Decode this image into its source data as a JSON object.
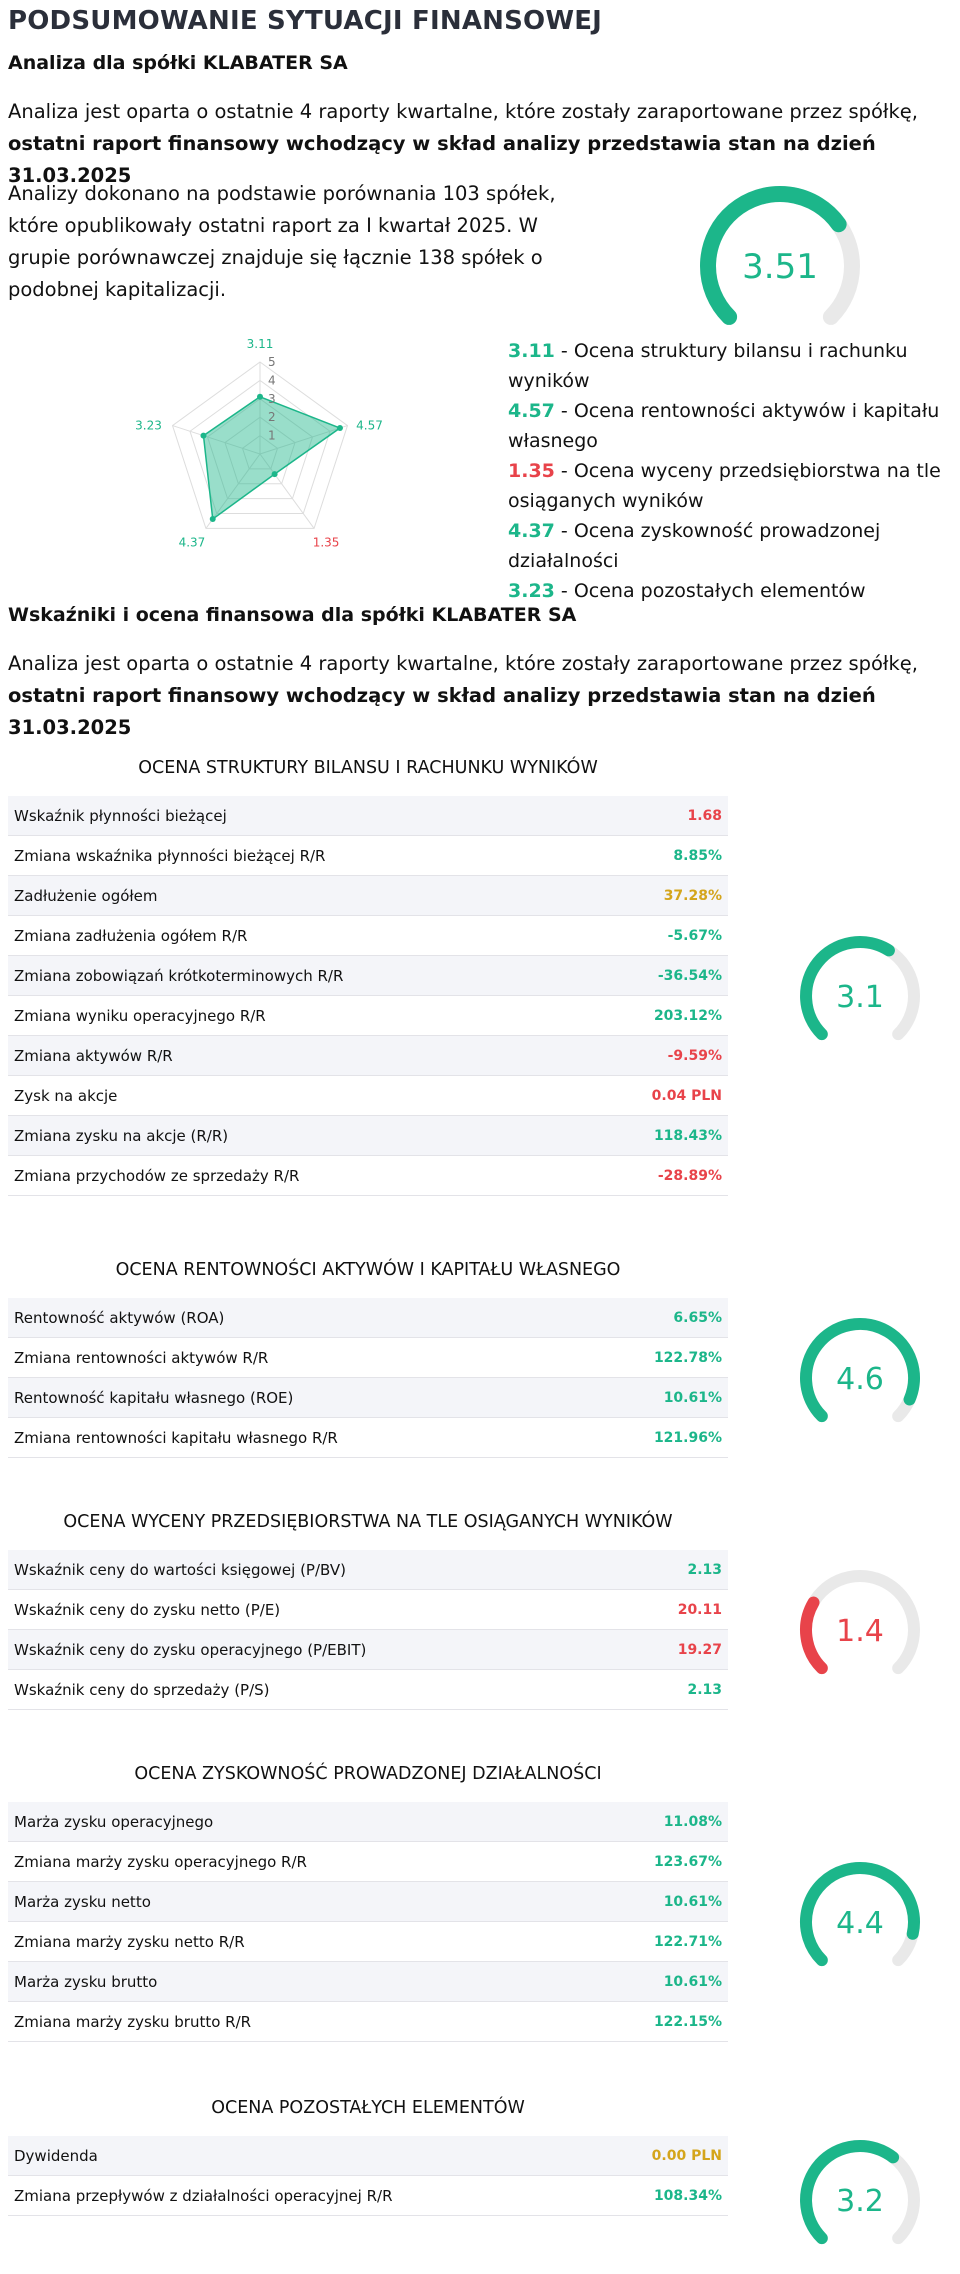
{
  "header": {
    "title": "PODSUMOWANIE SYTUACJI FINANSOWEJ",
    "subtitle": "Analiza dla spółki KLABATER SA"
  },
  "intro": {
    "text": "Analiza jest oparta o ostatnie 4 raporty kwartalne, które zostały zaraportowane przez spółkę, ",
    "bold": "ostatni raport finansowy wchodzący w skład analizy przedstawia stan na dzień 31.03.2025"
  },
  "comparison_note": "Analizy dokonano na podstawie porównania 103 spółek, które opublikowały ostatni raport za I kwartał 2025. W grupie porównawczej znajduje się łącznie 138 spółek o podobnej kapitalizacji.",
  "overall": {
    "score": "3.51",
    "value": 3.51,
    "max": 5,
    "color": "#1cb68a"
  },
  "colors": {
    "green": "#1cb68a",
    "red": "#e8434a",
    "yellow": "#d4a51c",
    "gray_track": "#e9e9e9"
  },
  "radar": {
    "scale_labels": [
      "1",
      "2",
      "3",
      "4",
      "5"
    ],
    "max": 5,
    "points": [
      {
        "value": 3.11,
        "label": "3.11",
        "color": "#1cb68a"
      },
      {
        "value": 4.57,
        "label": "4.57",
        "color": "#1cb68a"
      },
      {
        "value": 1.35,
        "label": "1.35",
        "color": "#e8434a"
      },
      {
        "value": 4.37,
        "label": "4.37",
        "color": "#1cb68a"
      },
      {
        "value": 3.23,
        "label": "3.23",
        "color": "#1cb68a"
      }
    ]
  },
  "legend": [
    {
      "value": "3.11",
      "text": " - Ocena struktury bilansu i rachunku wyników",
      "color": "#1cb68a"
    },
    {
      "value": "4.57",
      "text": " - Ocena rentowności aktywów i kapitału własnego",
      "color": "#1cb68a"
    },
    {
      "value": "1.35",
      "text": " - Ocena wyceny przedsiębiorstwa na tle osiąganych wyników",
      "color": "#e8434a"
    },
    {
      "value": "4.37",
      "text": " - Ocena zyskowność prowadzonej działalności",
      "color": "#1cb68a"
    },
    {
      "value": "3.23",
      "text": " - Ocena pozostałych elementów",
      "color": "#1cb68a"
    }
  ],
  "indicators": {
    "title": "Wskaźniki i ocena finansowa dla spółki KLABATER SA"
  },
  "sections": [
    {
      "title": "OCENA STRUKTURY BILANSU I RACHUNKU WYNIKÓW",
      "score": "3.1",
      "score_value": 3.1,
      "score_color": "#1cb68a",
      "rows": [
        {
          "label": "Wskaźnik płynności bieżącej",
          "value": "1.68",
          "color": "#e8434a"
        },
        {
          "label": "Zmiana wskaźnika płynności bieżącej R/R",
          "value": "8.85%",
          "color": "#1cb68a"
        },
        {
          "label": "Zadłużenie ogółem",
          "value": "37.28%",
          "color": "#d4a51c"
        },
        {
          "label": "Zmiana zadłużenia ogółem R/R",
          "value": "-5.67%",
          "color": "#1cb68a"
        },
        {
          "label": "Zmiana zobowiązań krótkoterminowych R/R",
          "value": "-36.54%",
          "color": "#1cb68a"
        },
        {
          "label": "Zmiana wyniku operacyjnego R/R",
          "value": "203.12%",
          "color": "#1cb68a"
        },
        {
          "label": "Zmiana aktywów R/R",
          "value": "-9.59%",
          "color": "#e8434a"
        },
        {
          "label": "Zysk na akcje",
          "value": "0.04 PLN",
          "color": "#e8434a"
        },
        {
          "label": "Zmiana zysku na akcje (R/R)",
          "value": "118.43%",
          "color": "#1cb68a"
        },
        {
          "label": "Zmiana przychodów ze sprzedaży R/R",
          "value": "-28.89%",
          "color": "#e8434a"
        }
      ]
    },
    {
      "title": "OCENA RENTOWNOŚCI AKTYWÓW I KAPITAŁU WŁASNEGO",
      "score": "4.6",
      "score_value": 4.6,
      "score_color": "#1cb68a",
      "rows": [
        {
          "label": "Rentowność aktywów (ROA)",
          "value": "6.65%",
          "color": "#1cb68a"
        },
        {
          "label": "Zmiana rentowności aktywów R/R",
          "value": "122.78%",
          "color": "#1cb68a"
        },
        {
          "label": "Rentowność kapitału własnego (ROE)",
          "value": "10.61%",
          "color": "#1cb68a"
        },
        {
          "label": "Zmiana rentowności kapitału własnego R/R",
          "value": "121.96%",
          "color": "#1cb68a"
        }
      ]
    },
    {
      "title": "OCENA WYCENY PRZEDSIĘBIORSTWA NA TLE OSIĄGANYCH WYNIKÓW",
      "score": "1.4",
      "score_value": 1.4,
      "score_color": "#e8434a",
      "rows": [
        {
          "label": "Wskaźnik ceny do wartości księgowej (P/BV)",
          "value": "2.13",
          "color": "#1cb68a"
        },
        {
          "label": "Wskaźnik ceny do zysku netto (P/E)",
          "value": "20.11",
          "color": "#e8434a"
        },
        {
          "label": "Wskaźnik ceny do zysku operacyjnego (P/EBIT)",
          "value": "19.27",
          "color": "#e8434a"
        },
        {
          "label": "Wskaźnik ceny do sprzedaży (P/S)",
          "value": "2.13",
          "color": "#1cb68a"
        }
      ]
    },
    {
      "title": "OCENA ZYSKOWNOŚĆ PROWADZONEJ DZIAŁALNOŚCI",
      "score": "4.4",
      "score_value": 4.4,
      "score_color": "#1cb68a",
      "rows": [
        {
          "label": "Marża zysku operacyjnego",
          "value": "11.08%",
          "color": "#1cb68a"
        },
        {
          "label": "Zmiana marży zysku operacyjnego R/R",
          "value": "123.67%",
          "color": "#1cb68a"
        },
        {
          "label": "Marża zysku netto",
          "value": "10.61%",
          "color": "#1cb68a"
        },
        {
          "label": "Zmiana marży zysku netto R/R",
          "value": "122.71%",
          "color": "#1cb68a"
        },
        {
          "label": "Marża zysku brutto",
          "value": "10.61%",
          "color": "#1cb68a"
        },
        {
          "label": "Zmiana marży zysku brutto R/R",
          "value": "122.15%",
          "color": "#1cb68a"
        }
      ]
    },
    {
      "title": "OCENA POZOSTAŁYCH ELEMENTÓW",
      "score": "3.2",
      "score_value": 3.2,
      "score_color": "#1cb68a",
      "rows": [
        {
          "label": "Dywidenda",
          "value": "0.00 PLN",
          "color": "#d4a51c"
        },
        {
          "label": "Zmiana przepływów z działalności operacyjnej R/R",
          "value": "108.34%",
          "color": "#1cb68a"
        }
      ]
    }
  ]
}
